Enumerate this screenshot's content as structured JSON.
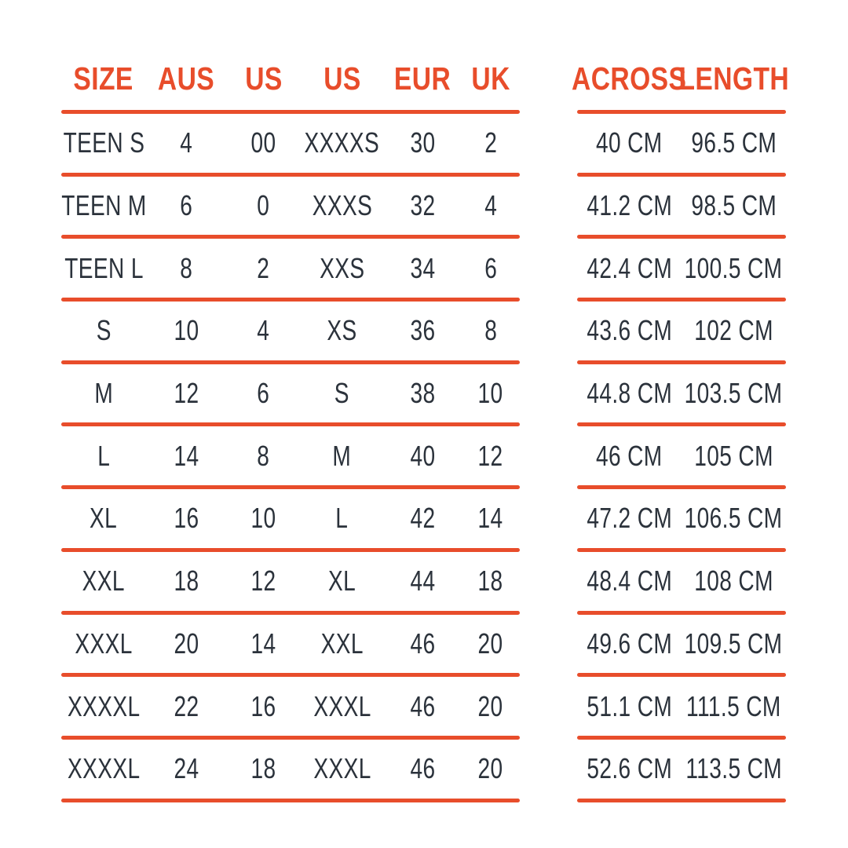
{
  "page": {
    "background": "#FFFFFF",
    "accent_color": "#E84D2B",
    "text_color": "#2B323B"
  },
  "chart_data": {
    "type": "table",
    "layout": "two side-by-side tables sharing rows, orange rule lines between rows, no vertical borders",
    "size_table": {
      "headers": [
        "SIZE",
        "AUS",
        "US",
        "US",
        "EUR",
        "UK"
      ],
      "rows": [
        [
          "TEEN S",
          "4",
          "00",
          "XXXXS",
          "30",
          "2"
        ],
        [
          "TEEN M",
          "6",
          "0",
          "XXXS",
          "32",
          "4"
        ],
        [
          "TEEN L",
          "8",
          "2",
          "XXS",
          "34",
          "6"
        ],
        [
          "S",
          "10",
          "4",
          "XS",
          "36",
          "8"
        ],
        [
          "M",
          "12",
          "6",
          "S",
          "38",
          "10"
        ],
        [
          "L",
          "14",
          "8",
          "M",
          "40",
          "12"
        ],
        [
          "XL",
          "16",
          "10",
          "L",
          "42",
          "14"
        ],
        [
          "XXL",
          "18",
          "12",
          "XL",
          "44",
          "18"
        ],
        [
          "XXXL",
          "20",
          "14",
          "XXL",
          "46",
          "20"
        ],
        [
          "XXXXL",
          "22",
          "16",
          "XXXL",
          "46",
          "20"
        ],
        [
          "XXXXL",
          "24",
          "18",
          "XXXL",
          "46",
          "20"
        ]
      ]
    },
    "measurement_table": {
      "headers": [
        "ACROSS",
        "LENGTH"
      ],
      "rows": [
        [
          "40 CM",
          "96.5 CM"
        ],
        [
          "41.2 CM",
          "98.5 CM"
        ],
        [
          "42.4 CM",
          "100.5 CM"
        ],
        [
          "43.6 CM",
          "102 CM"
        ],
        [
          "44.8 CM",
          "103.5 CM"
        ],
        [
          "46 CM",
          "105 CM"
        ],
        [
          "47.2 CM",
          "106.5 CM"
        ],
        [
          "48.4 CM",
          "108 CM"
        ],
        [
          "49.6 CM",
          "109.5 CM"
        ],
        [
          "51.1 CM",
          "111.5 CM"
        ],
        [
          "52.6 CM",
          "113.5 CM"
        ]
      ]
    }
  }
}
